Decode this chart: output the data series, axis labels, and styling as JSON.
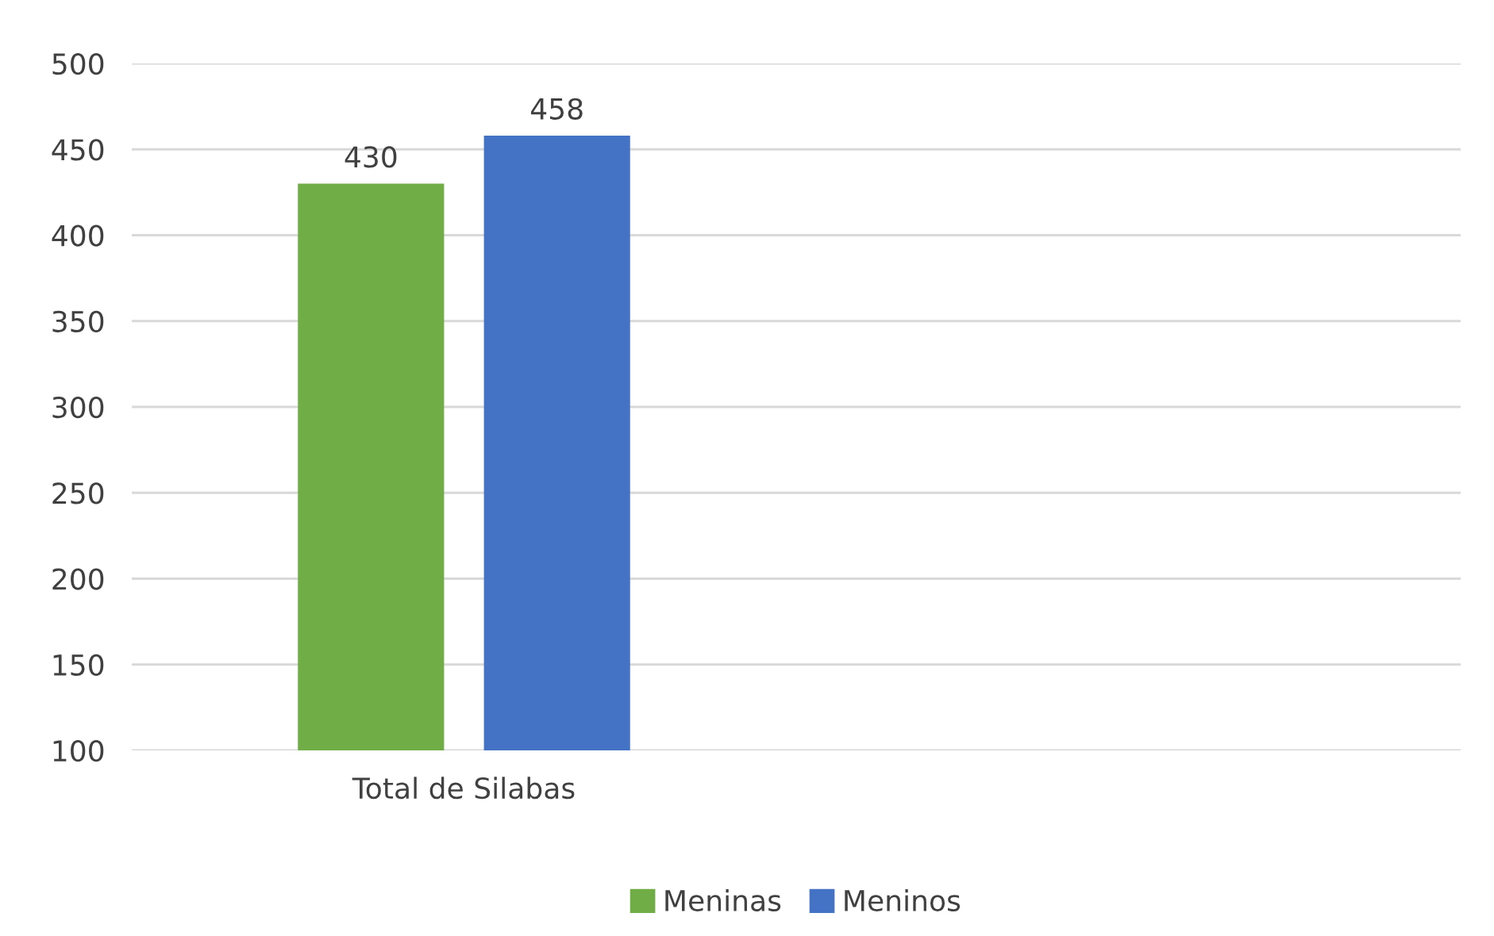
{
  "chart_data": {
    "type": "bar",
    "categories": [
      "Total de Silabas",
      null
    ],
    "series": [
      {
        "name": "Meninas",
        "color": "#70ad47",
        "values": [
          430,
          null
        ]
      },
      {
        "name": "Meninos",
        "color": "#4472c4",
        "values": [
          458,
          null
        ]
      }
    ],
    "ylim": [
      100,
      500
    ],
    "yticks": [
      100,
      150,
      200,
      250,
      300,
      350,
      400,
      450,
      500
    ],
    "grid": "y",
    "legend": "bottom",
    "data_labels": true
  }
}
